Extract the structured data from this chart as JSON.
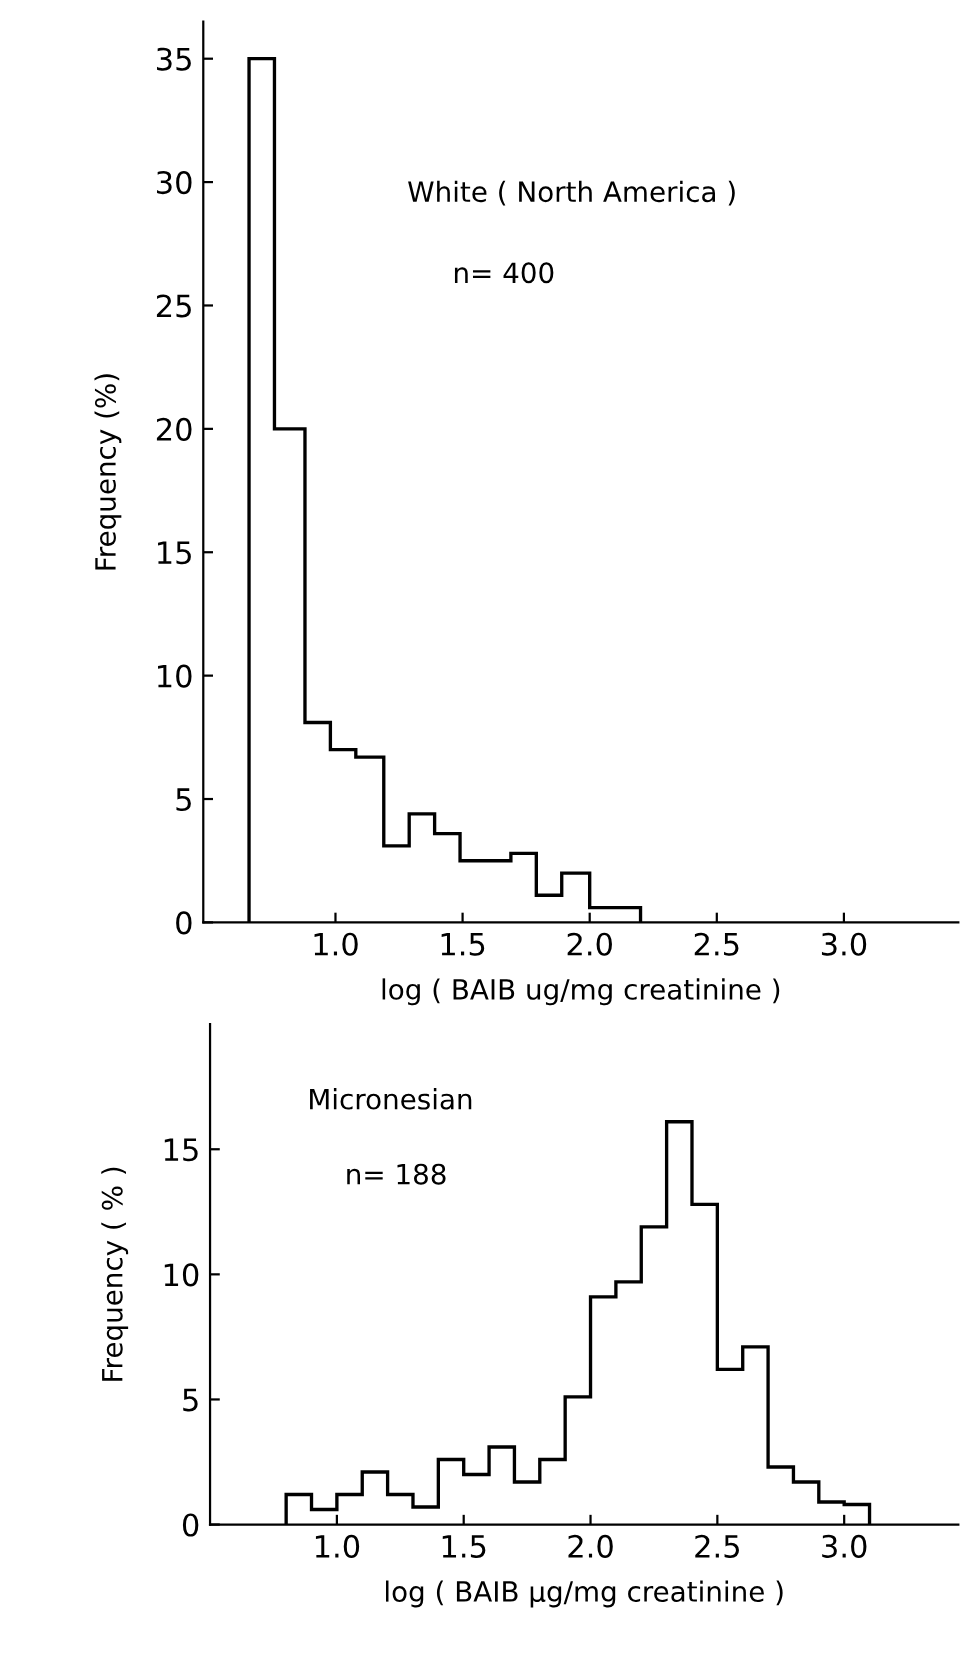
{
  "chart_data": [
    {
      "type": "histogram",
      "xlabel": "log ( BAIB ug/mg creatinine )",
      "ylabel": "Frequency (%)",
      "annotations": [
        "White ( North America )",
        "n= 400"
      ],
      "bins": [
        0.66,
        0.76,
        0.88,
        0.98,
        1.08,
        1.19,
        1.29,
        1.39,
        1.49,
        1.59,
        1.69,
        1.79,
        1.89,
        2.0,
        2.1,
        2.2
      ],
      "values": [
        35,
        20,
        8.1,
        7.0,
        6.7,
        3.1,
        4.4,
        3.6,
        2.5,
        2.5,
        2.8,
        1.1,
        2.0,
        0.6,
        0.6
      ],
      "color": "#000000",
      "xlim": [
        0.48,
        3.45
      ],
      "ylim": [
        0,
        36.5
      ],
      "xticks": [
        {
          "value": 1.0,
          "label": "1.0"
        },
        {
          "value": 1.5,
          "label": "1.5"
        },
        {
          "value": 2.0,
          "label": "2.0"
        },
        {
          "value": 2.5,
          "label": "2.5"
        },
        {
          "value": 3.0,
          "label": "3.0"
        }
      ],
      "yticks": [
        0,
        5,
        10,
        15,
        20,
        25,
        30,
        35
      ],
      "grid": false
    },
    {
      "type": "histogram",
      "xlabel": "log ( BAIB µg/mg creatinine )",
      "ylabel": "Frequency ( % )",
      "annotations": [
        "Micronesian",
        "n= 188"
      ],
      "bins": [
        0.8,
        0.9,
        1.0,
        1.1,
        1.2,
        1.3,
        1.4,
        1.5,
        1.6,
        1.7,
        1.8,
        1.9,
        2.0,
        2.1,
        2.2,
        2.3,
        2.4,
        2.5,
        2.6,
        2.7,
        2.8,
        2.9,
        3.0,
        3.1
      ],
      "values": [
        1.2,
        0.6,
        1.2,
        2.1,
        1.2,
        0.7,
        2.6,
        2.0,
        3.1,
        1.7,
        2.6,
        5.1,
        9.1,
        9.7,
        11.9,
        16.1,
        12.8,
        6.2,
        7.1,
        2.3,
        1.7,
        0.9,
        0.8
      ],
      "color": "#000000",
      "xlim": [
        0.5,
        3.45
      ],
      "ylim": [
        0,
        20
      ],
      "xticks": [
        {
          "value": 1.0,
          "label": "1.0"
        },
        {
          "value": 1.5,
          "label": "1.5"
        },
        {
          "value": 2.0,
          "label": "2.0"
        },
        {
          "value": 2.5,
          "label": "2.5"
        },
        {
          "value": 3.0,
          "label": "3.0"
        }
      ],
      "yticks": [
        0,
        5,
        10,
        15
      ],
      "grid": false
    }
  ]
}
